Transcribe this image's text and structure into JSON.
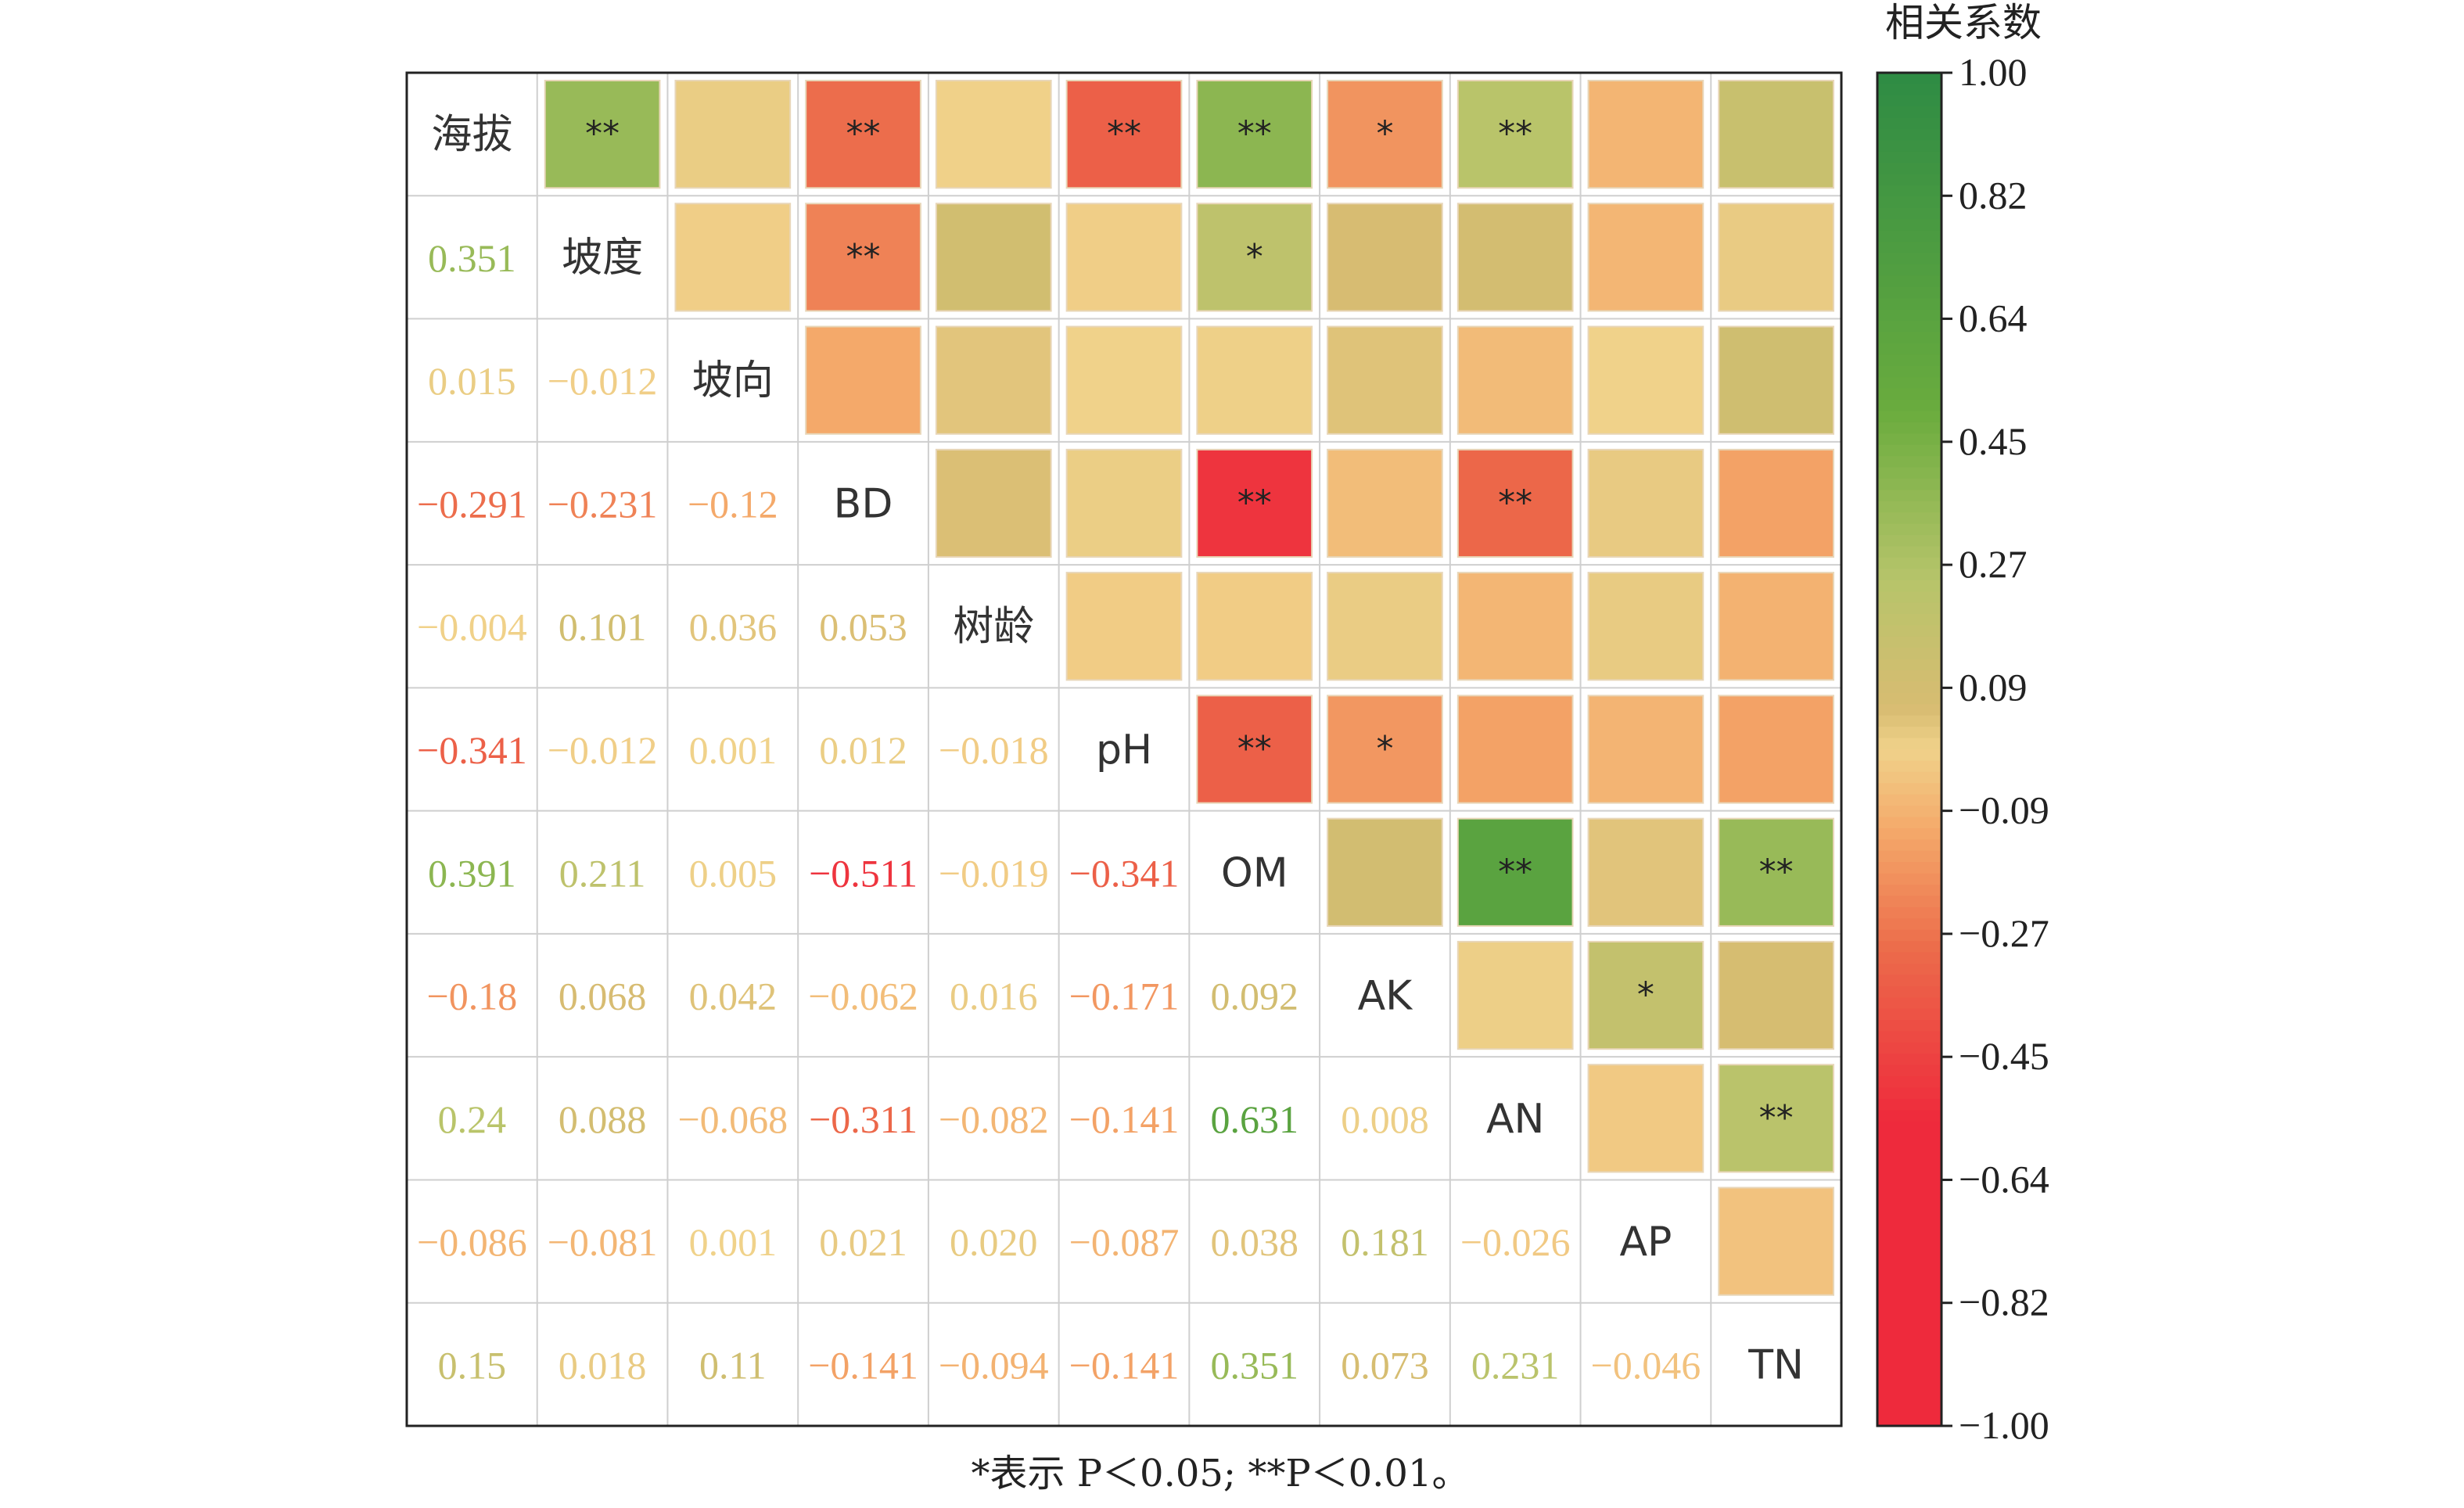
{
  "chart_data": {
    "type": "heatmap",
    "variables": [
      "海拔",
      "坡度",
      "坡向",
      "BD",
      "树龄",
      "pH",
      "OM",
      "AK",
      "AN",
      "AP",
      "TN"
    ],
    "lower_triangle_values": [
      [],
      [
        "0.351"
      ],
      [
        "0.015",
        "−0.012"
      ],
      [
        "−0.291",
        "−0.231",
        "−0.12"
      ],
      [
        "−0.004",
        "0.101",
        "0.036",
        "0.053"
      ],
      [
        "−0.341",
        "−0.012",
        "0.001",
        "0.012",
        "−0.018"
      ],
      [
        "0.391",
        "0.211",
        "0.005",
        "−0.511",
        "−0.019",
        "−0.341"
      ],
      [
        "−0.18",
        "0.068",
        "0.042",
        "−0.062",
        "0.016",
        "−0.171",
        "0.092"
      ],
      [
        "0.24",
        "0.088",
        "−0.068",
        "−0.311",
        "−0.082",
        "−0.141",
        "0.631",
        "0.008"
      ],
      [
        "−0.086",
        "−0.081",
        "0.001",
        "0.021",
        "0.020",
        "−0.087",
        "0.038",
        "0.181",
        "−0.026"
      ],
      [
        "0.15",
        "0.018",
        "0.11",
        "−0.141",
        "−0.094",
        "−0.141",
        "0.351",
        "0.073",
        "0.231",
        "−0.046"
      ]
    ],
    "upper_triangle_marks": [
      [
        "",
        "**",
        "",
        "**",
        "",
        "**",
        "**",
        "*",
        "**",
        "",
        ""
      ],
      [
        "",
        "",
        "",
        "**",
        "",
        "",
        "*",
        "",
        "",
        "",
        ""
      ],
      [
        "",
        "",
        "",
        "",
        "",
        "",
        "",
        "",
        "",
        "",
        ""
      ],
      [
        "",
        "",
        "",
        "",
        "",
        "",
        "**",
        "",
        "**",
        "",
        ""
      ],
      [
        "",
        "",
        "",
        "",
        "",
        "",
        "",
        "",
        "",
        "",
        ""
      ],
      [
        "",
        "",
        "",
        "",
        "",
        "",
        "**",
        "*",
        "",
        "",
        ""
      ],
      [
        "",
        "",
        "",
        "",
        "",
        "",
        "",
        "",
        "**",
        "",
        "**"
      ],
      [
        "",
        "",
        "",
        "",
        "",
        "",
        "",
        "",
        "",
        "*",
        ""
      ],
      [
        "",
        "",
        "",
        "",
        "",
        "",
        "",
        "",
        "",
        "",
        "**"
      ],
      [
        "",
        "",
        "",
        "",
        "",
        "",
        "",
        "",
        "",
        "",
        ""
      ],
      [
        "",
        "",
        "",
        "",
        "",
        "",
        "",
        "",
        "",
        "",
        ""
      ]
    ],
    "colorbar": {
      "title": "相关系数",
      "ticks": [
        "1.00",
        "0.82",
        "0.64",
        "0.45",
        "0.27",
        "0.09",
        "−0.09",
        "−0.27",
        "−0.45",
        "−0.64",
        "−0.82",
        "−1.00"
      ],
      "range": [
        -1,
        1
      ]
    },
    "colors": {
      "strong_positive": "#2e8b44",
      "positive": "#6aac3e",
      "weak_positive": "#b7c46a",
      "neutral": "#d8bc72",
      "light_neutral": "#f0d28a",
      "weak_negative": "#f4a96a",
      "negative": "#ec6a4a",
      "strong_negative": "#ee2a3c"
    }
  },
  "footnote": "*表示 P＜0.05; **P＜0.01。"
}
